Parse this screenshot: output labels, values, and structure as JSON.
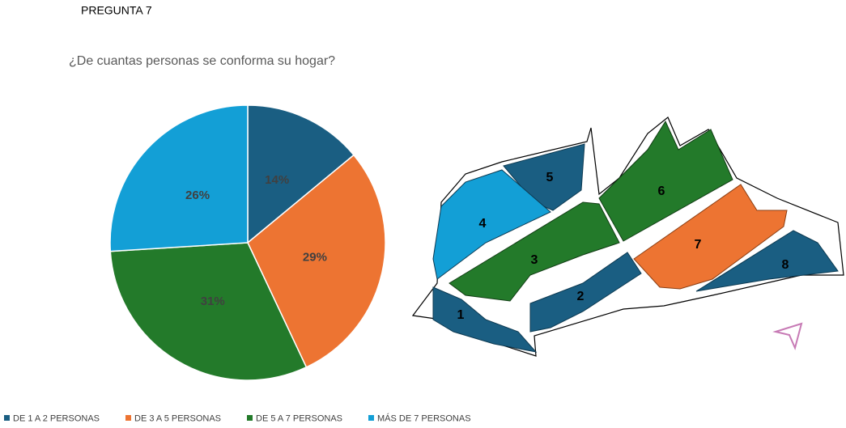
{
  "title": "PREGUNTA 7",
  "chart_data": {
    "type": "pie",
    "title": "¿De cuantas personas se conforma su hogar?",
    "categories": [
      "DE 1 A 2 PERSONAS",
      "DE 3 A 5 PERSONAS",
      "DE 5 A 7 PERSONAS",
      "MÁS DE 7 PERSONAS"
    ],
    "values": [
      14,
      29,
      31,
      26
    ],
    "value_labels": [
      "14%",
      "29%",
      "31%",
      "26%"
    ],
    "colors": [
      "#1a5e82",
      "#ed7432",
      "#237a2a",
      "#139fd6"
    ],
    "legend": "bottom"
  },
  "map": {
    "zone_labels": [
      "1",
      "2",
      "3",
      "4",
      "5",
      "6",
      "7",
      "8"
    ]
  }
}
